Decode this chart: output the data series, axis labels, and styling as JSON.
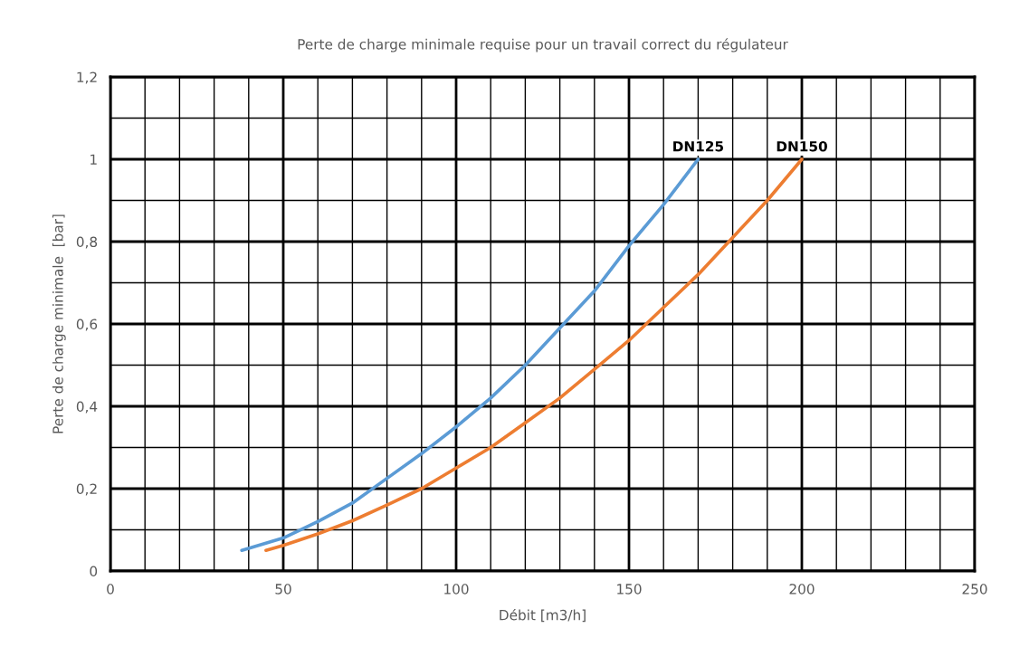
{
  "chart_data": {
    "type": "line",
    "title": "Perte de charge minimale requise pour un travail correct du régulateur",
    "xlabel": "Débit [m3/h]",
    "ylabel": "Perte de charge minimale  [bar]",
    "xlim": [
      0,
      250
    ],
    "ylim": [
      0,
      1.2
    ],
    "xticks": [
      0,
      {
        "value": 10,
        "label": null
      },
      {
        "value": 20,
        "label": null
      },
      {
        "value": 30,
        "label": null
      },
      {
        "value": 40,
        "label": null
      },
      50,
      {
        "value": 60,
        "label": null
      },
      {
        "value": 70,
        "label": null
      },
      {
        "value": 80,
        "label": null
      },
      {
        "value": 90,
        "label": null
      },
      100,
      {
        "value": 110,
        "label": null
      },
      {
        "value": 120,
        "label": null
      },
      {
        "value": 130,
        "label": null
      },
      {
        "value": 140,
        "label": null
      },
      150,
      {
        "value": 160,
        "label": null
      },
      {
        "value": 170,
        "label": null
      },
      {
        "value": 180,
        "label": null
      },
      {
        "value": 190,
        "label": null
      },
      200,
      {
        "value": 210,
        "label": null
      },
      {
        "value": 220,
        "label": null
      },
      {
        "value": 230,
        "label": null
      },
      {
        "value": 240,
        "label": null
      },
      250
    ],
    "yticks": [
      0,
      {
        "value": 0.1,
        "label": null
      },
      {
        "value": 0.2,
        "label": "0,2"
      },
      {
        "value": 0.3,
        "label": null
      },
      {
        "value": 0.4,
        "label": "0,4"
      },
      {
        "value": 0.5,
        "label": null
      },
      {
        "value": 0.6,
        "label": "0,6"
      },
      {
        "value": 0.7,
        "label": null
      },
      {
        "value": 0.8,
        "label": "0,8"
      },
      {
        "value": 0.9,
        "label": null
      },
      1,
      {
        "value": 1.1,
        "label": null
      },
      {
        "value": 1.2,
        "label": "1,2"
      }
    ],
    "grid": true,
    "marker": "none",
    "line_style": "solid",
    "series": [
      {
        "name": "DN125",
        "color": "#5b9bd5",
        "x": [
          38,
          50,
          60,
          70,
          80,
          90,
          100,
          110,
          120,
          130,
          140,
          150,
          160,
          170
        ],
        "values": [
          0.05,
          0.08,
          0.12,
          0.165,
          0.225,
          0.285,
          0.35,
          0.42,
          0.5,
          0.59,
          0.68,
          0.79,
          0.89,
          1.0
        ]
      },
      {
        "name": "DN150",
        "color": "#ed7d31",
        "x": [
          45,
          50,
          60,
          70,
          80,
          90,
          100,
          110,
          120,
          130,
          140,
          150,
          160,
          170,
          180,
          190,
          200
        ],
        "values": [
          0.05,
          0.062,
          0.09,
          0.122,
          0.16,
          0.2,
          0.25,
          0.3,
          0.36,
          0.42,
          0.49,
          0.56,
          0.64,
          0.72,
          0.81,
          0.9,
          1.0
        ]
      }
    ]
  }
}
